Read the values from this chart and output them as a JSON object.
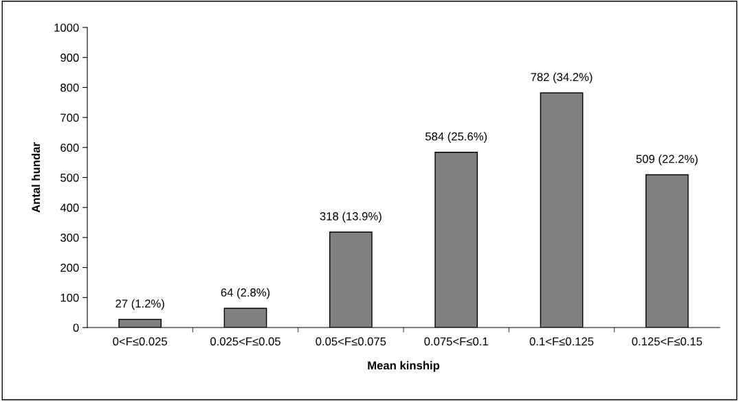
{
  "chart_data": {
    "type": "bar",
    "xlabel": "Mean kinship",
    "ylabel": "Antal hundar",
    "categories": [
      "0<F≤0.025",
      "0.025<F≤0.05",
      "0.05<F≤0.075",
      "0.075<F≤0.1",
      "0.1<F≤0.125",
      "0.125<F≤0.15"
    ],
    "values": [
      27,
      64,
      318,
      584,
      782,
      509
    ],
    "value_labels": [
      "27 (1.2%)",
      "64 (2.8%)",
      "318 (13.9%)",
      "584 (25.6%)",
      "782 (34.2%)",
      "509 (22.2%)"
    ],
    "color": "#808080",
    "ylim": [
      0,
      1000
    ],
    "yticks": [
      0,
      100,
      200,
      300,
      400,
      500,
      600,
      700,
      800,
      900,
      1000
    ],
    "grid": false,
    "legend": false
  }
}
